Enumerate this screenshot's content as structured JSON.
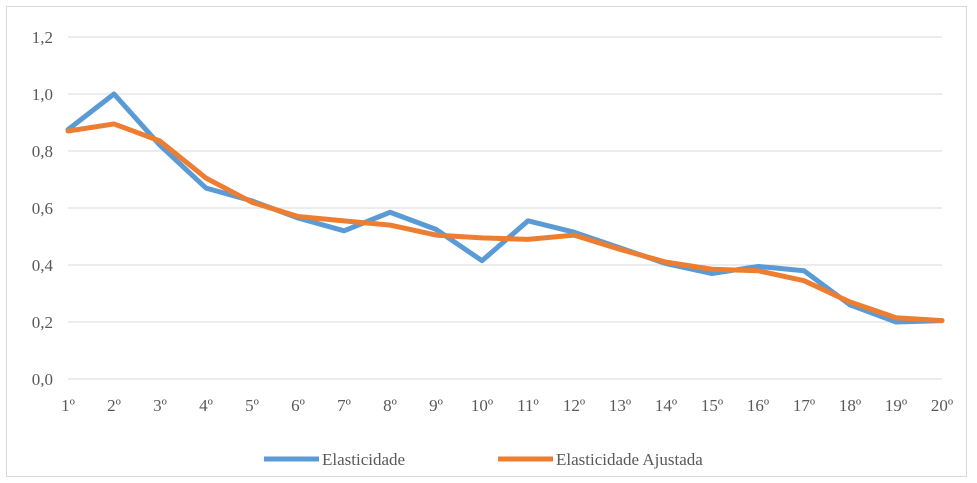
{
  "chart_data": {
    "type": "line",
    "title": "",
    "xlabel": "",
    "ylabel": "",
    "categories": [
      "1º",
      "2º",
      "3º",
      "4º",
      "5º",
      "6º",
      "7º",
      "8º",
      "9º",
      "10º",
      "11º",
      "12º",
      "13º",
      "14º",
      "15º",
      "16º",
      "17º",
      "18º",
      "19º",
      "20º"
    ],
    "ylim": [
      0,
      1.2
    ],
    "yticks": [
      "0,0",
      "0,2",
      "0,4",
      "0,6",
      "0,8",
      "1,0",
      "1,2"
    ],
    "grid": "horizontal",
    "legend_position": "bottom",
    "series": [
      {
        "name": "Elasticidade",
        "color": "#5b9bd5",
        "values": [
          0.875,
          1.0,
          0.82,
          0.67,
          0.625,
          0.565,
          0.52,
          0.585,
          0.525,
          0.415,
          0.555,
          0.515,
          0.46,
          0.405,
          0.37,
          0.395,
          0.38,
          0.26,
          0.2,
          0.205
        ]
      },
      {
        "name": "Elasticidade Ajustada",
        "color": "#ed7d31",
        "values": [
          0.87,
          0.895,
          0.835,
          0.705,
          0.62,
          0.57,
          0.555,
          0.54,
          0.505,
          0.495,
          0.49,
          0.505,
          0.455,
          0.41,
          0.385,
          0.38,
          0.345,
          0.27,
          0.215,
          0.205
        ]
      }
    ]
  }
}
